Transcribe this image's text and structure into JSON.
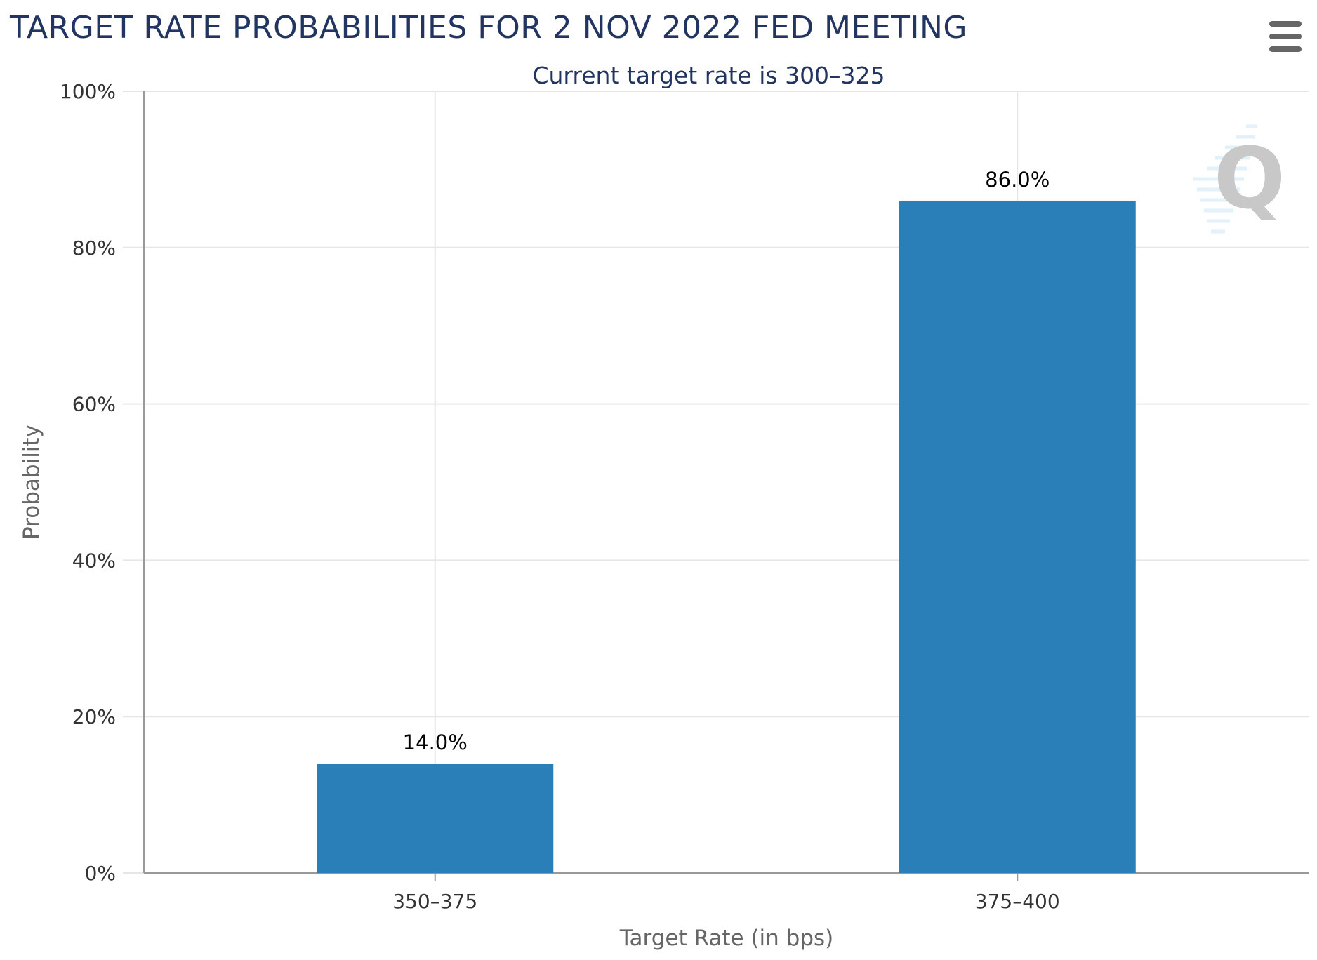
{
  "header": {
    "title": "TARGET RATE PROBABILITIES FOR 2 NOV 2022 FED MEETING",
    "subtitle": "Current target rate is 300–325"
  },
  "toolbar": {
    "menu_icon": "hamburger-menu-icon"
  },
  "watermark": {
    "icon": "q-logo-watermark",
    "color": "#c8c8c8"
  },
  "chart_data": {
    "type": "bar",
    "title": "TARGET RATE PROBABILITIES FOR 2 NOV 2022 FED MEETING",
    "subtitle": "Current target rate is 300–325",
    "xlabel": "Target Rate (in bps)",
    "ylabel": "Probability",
    "categories": [
      "350–375",
      "375–400"
    ],
    "values": [
      14.0,
      86.0
    ],
    "data_labels": [
      "14.0%",
      "86.0%"
    ],
    "ylim": [
      0,
      100
    ],
    "y_ticks": [
      0,
      20,
      40,
      60,
      80,
      100
    ],
    "y_tick_labels": [
      "0%",
      "20%",
      "40%",
      "60%",
      "80%",
      "100%"
    ],
    "grid": true,
    "legend": "none",
    "bar_color": "#2a7fb8",
    "grid_color": "#e6e6e6"
  }
}
